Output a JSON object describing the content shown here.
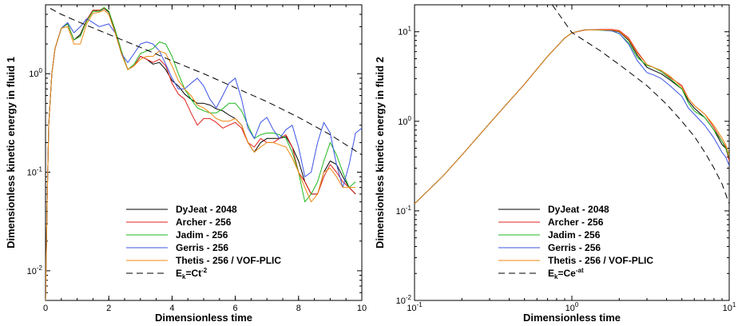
{
  "chart_data": [
    {
      "type": "line",
      "xlabel": "Dimensionless time",
      "ylabel": "Dimensionless kinetic energy in fluid 1",
      "xscale": "linear",
      "yscale": "log",
      "xlim": [
        0,
        10
      ],
      "ylim": [
        0.005,
        5
      ],
      "xticks": [
        0,
        2,
        4,
        6,
        8,
        10
      ],
      "xtick_labels": [
        "0",
        "2",
        "4",
        "6",
        "8",
        "10"
      ],
      "yticks": [
        0.01,
        0.1,
        1
      ],
      "ytick_labels": [
        {
          "base": "10",
          "exp": "-2"
        },
        {
          "base": "10",
          "exp": "-1"
        },
        {
          "base": "10",
          "exp": "0"
        }
      ],
      "legend_position": "bottom-center",
      "series": [
        {
          "name": "DyJeat - 2048",
          "color": "#000000",
          "dash": "solid",
          "x": [
            0,
            0.05,
            0.1,
            0.2,
            0.3,
            0.5,
            0.7,
            0.9,
            1.1,
            1.3,
            1.5,
            1.7,
            1.85,
            2.0,
            2.2,
            2.4,
            2.6,
            2.8,
            3.0,
            3.2,
            3.4,
            3.6,
            3.8,
            4.0,
            4.2,
            4.4,
            4.6,
            4.8,
            5.0,
            5.2,
            5.4,
            5.6,
            5.8,
            6.0,
            6.2,
            6.4,
            6.6,
            6.8,
            7.0,
            7.2,
            7.4,
            7.6,
            7.8,
            8.0,
            8.2,
            8.4,
            8.6,
            8.8,
            9.0,
            9.2,
            9.4,
            9.6,
            9.8
          ],
          "y": [
            0.005,
            0.05,
            0.3,
            1.0,
            1.8,
            2.9,
            3.2,
            2.2,
            2.5,
            3.5,
            4.4,
            4.3,
            4.6,
            4.2,
            2.7,
            1.6,
            1.1,
            1.2,
            1.5,
            1.4,
            1.25,
            1.3,
            1.1,
            0.85,
            0.75,
            0.62,
            0.55,
            0.5,
            0.5,
            0.48,
            0.44,
            0.42,
            0.38,
            0.35,
            0.3,
            0.2,
            0.16,
            0.2,
            0.22,
            0.22,
            0.22,
            0.23,
            0.18,
            0.13,
            0.08,
            0.06,
            0.06,
            0.1,
            0.13,
            0.12,
            0.09,
            0.07,
            0.06
          ]
        },
        {
          "name": "Archer - 256",
          "color": "#e0201c",
          "dash": "solid",
          "x": [
            0,
            0.05,
            0.1,
            0.2,
            0.3,
            0.5,
            0.7,
            0.9,
            1.1,
            1.3,
            1.5,
            1.7,
            1.85,
            2.0,
            2.2,
            2.4,
            2.6,
            2.8,
            3.0,
            3.2,
            3.4,
            3.6,
            3.8,
            4.0,
            4.2,
            4.4,
            4.6,
            4.8,
            5.0,
            5.2,
            5.4,
            5.6,
            5.8,
            6.0,
            6.2,
            6.4,
            6.6,
            6.8,
            7.0,
            7.2,
            7.4,
            7.6,
            7.8,
            8.0,
            8.2,
            8.4,
            8.6,
            8.8,
            9.0,
            9.2,
            9.4,
            9.6,
            9.8
          ],
          "y": [
            0.005,
            0.05,
            0.3,
            1.0,
            1.8,
            2.9,
            3.2,
            2.2,
            2.4,
            3.5,
            4.4,
            4.4,
            4.6,
            4.3,
            2.8,
            1.7,
            1.1,
            1.2,
            1.5,
            1.4,
            1.3,
            1.4,
            1.2,
            0.8,
            0.62,
            0.55,
            0.4,
            0.3,
            0.35,
            0.35,
            0.32,
            0.28,
            0.3,
            0.32,
            0.28,
            0.2,
            0.18,
            0.22,
            0.2,
            0.2,
            0.22,
            0.24,
            0.18,
            0.1,
            0.08,
            0.06,
            0.06,
            0.09,
            0.12,
            0.1,
            0.08,
            0.07,
            0.06
          ]
        },
        {
          "name": "Jadim - 256",
          "color": "#1fb81f",
          "dash": "solid",
          "x": [
            0,
            0.05,
            0.1,
            0.2,
            0.3,
            0.5,
            0.7,
            0.9,
            1.1,
            1.3,
            1.5,
            1.7,
            1.85,
            2.0,
            2.2,
            2.4,
            2.6,
            2.8,
            3.0,
            3.2,
            3.4,
            3.6,
            3.8,
            4.0,
            4.2,
            4.4,
            4.6,
            4.8,
            5.0,
            5.2,
            5.4,
            5.6,
            5.8,
            6.0,
            6.2,
            6.4,
            6.6,
            6.8,
            7.0,
            7.2,
            7.4,
            7.6,
            7.8,
            8.0,
            8.2,
            8.4,
            8.6,
            8.8,
            9.0,
            9.2,
            9.4,
            9.6,
            9.8
          ],
          "y": [
            0.005,
            0.05,
            0.3,
            1.0,
            1.8,
            2.9,
            3.2,
            2.2,
            2.4,
            3.4,
            4.3,
            4.3,
            4.7,
            4.3,
            2.8,
            1.7,
            1.1,
            1.25,
            1.6,
            1.7,
            1.8,
            2.1,
            2.0,
            1.5,
            1.0,
            0.7,
            0.55,
            0.45,
            0.42,
            0.4,
            0.4,
            0.44,
            0.5,
            0.5,
            0.42,
            0.3,
            0.22,
            0.24,
            0.25,
            0.25,
            0.24,
            0.22,
            0.16,
            0.1,
            0.05,
            0.06,
            0.08,
            0.13,
            0.2,
            0.15,
            0.1,
            0.07,
            0.08
          ]
        },
        {
          "name": "Gerris - 256",
          "color": "#3d55e6",
          "dash": "solid",
          "x": [
            0,
            0.05,
            0.1,
            0.2,
            0.3,
            0.5,
            0.7,
            0.9,
            1.1,
            1.3,
            1.5,
            1.7,
            1.85,
            2.0,
            2.2,
            2.4,
            2.6,
            2.8,
            3.0,
            3.2,
            3.4,
            3.6,
            3.8,
            4.0,
            4.2,
            4.4,
            4.6,
            4.8,
            5.0,
            5.2,
            5.4,
            5.6,
            5.8,
            6.0,
            6.2,
            6.4,
            6.6,
            6.8,
            7.0,
            7.2,
            7.4,
            7.6,
            7.8,
            8.0,
            8.2,
            8.4,
            8.6,
            8.8,
            9.0,
            9.2,
            9.4,
            9.6,
            9.8,
            10.0
          ],
          "y": [
            0.005,
            0.05,
            0.3,
            1.0,
            1.8,
            2.9,
            3.3,
            2.6,
            3.0,
            3.6,
            3.3,
            3.0,
            3.1,
            3.2,
            2.6,
            1.6,
            1.3,
            1.6,
            2.0,
            2.1,
            2.0,
            1.7,
            1.25,
            0.9,
            0.7,
            0.7,
            0.8,
            0.9,
            0.75,
            0.55,
            0.45,
            0.6,
            0.8,
            0.9,
            0.55,
            0.28,
            0.22,
            0.32,
            0.36,
            0.27,
            0.22,
            0.27,
            0.3,
            0.18,
            0.09,
            0.1,
            0.2,
            0.32,
            0.25,
            0.12,
            0.07,
            0.12,
            0.25,
            0.28
          ]
        },
        {
          "name": "Thetis - 256 / VOF-PLIC",
          "color": "#f08a12",
          "dash": "solid",
          "x": [
            0,
            0.05,
            0.1,
            0.2,
            0.3,
            0.5,
            0.7,
            0.9,
            1.1,
            1.3,
            1.5,
            1.7,
            1.85,
            2.0,
            2.2,
            2.4,
            2.6,
            2.8,
            3.0,
            3.2,
            3.4,
            3.6,
            3.8,
            4.0,
            4.2,
            4.4,
            4.6,
            4.8,
            5.0,
            5.2,
            5.4,
            5.6,
            5.8,
            6.0,
            6.2,
            6.4,
            6.6,
            6.8,
            7.0,
            7.2,
            7.4,
            7.6,
            7.8,
            8.0,
            8.2,
            8.4,
            8.6,
            8.8,
            9.0,
            9.2,
            9.4,
            9.6,
            9.8
          ],
          "y": [
            0.005,
            0.05,
            0.3,
            1.0,
            1.8,
            2.9,
            3.0,
            2.0,
            2.0,
            3.2,
            4.1,
            4.2,
            4.4,
            4.0,
            2.6,
            1.6,
            1.1,
            1.2,
            1.4,
            1.5,
            1.5,
            1.7,
            1.6,
            1.2,
            0.85,
            0.7,
            0.6,
            0.48,
            0.45,
            0.4,
            0.35,
            0.33,
            0.33,
            0.35,
            0.3,
            0.2,
            0.16,
            0.18,
            0.2,
            0.2,
            0.19,
            0.18,
            0.14,
            0.1,
            0.07,
            0.05,
            0.06,
            0.1,
            0.11,
            0.09,
            0.07,
            0.07,
            0.07
          ]
        },
        {
          "name_base": "E",
          "name_sub": "k",
          "name_mid": "=Ct",
          "name_sup": "-2",
          "color": "#000000",
          "dash": "8,5",
          "x": [
            0.15,
            0.5,
            1,
            2,
            3,
            4,
            5,
            6,
            7,
            8,
            9,
            10
          ],
          "y": [
            4.6,
            4.0,
            3.4,
            2.5,
            1.85,
            1.35,
            1.0,
            0.72,
            0.52,
            0.36,
            0.24,
            0.15
          ]
        }
      ]
    },
    {
      "type": "line",
      "xlabel": "Dimensionless time",
      "ylabel": "Dimensionless kinetic energy in fluid 2",
      "xscale": "log",
      "yscale": "log",
      "xlim": [
        0.1,
        10
      ],
      "ylim": [
        0.01,
        20
      ],
      "xticks": [
        0.1,
        1,
        10
      ],
      "xtick_labels": [
        {
          "base": "10",
          "exp": "-1"
        },
        {
          "base": "10",
          "exp": "0"
        },
        {
          "base": "10",
          "exp": "1"
        }
      ],
      "yticks": [
        0.01,
        0.1,
        1,
        10
      ],
      "ytick_labels": [
        {
          "base": "10",
          "exp": "-2"
        },
        {
          "base": "10",
          "exp": "-1"
        },
        {
          "base": "10",
          "exp": "0"
        },
        {
          "base": "10",
          "exp": "1"
        }
      ],
      "legend_position": "bottom-center",
      "series": [
        {
          "name": "DyJeat - 2048",
          "color": "#000000",
          "dash": "solid",
          "x": [
            0.1,
            0.15,
            0.2,
            0.3,
            0.5,
            0.7,
            0.9,
            1.0,
            1.2,
            1.5,
            1.8,
            2.0,
            2.3,
            2.6,
            3.0,
            3.3,
            3.7,
            4.2,
            5.0,
            5.5,
            6.0,
            7.0,
            8.0,
            9.0,
            9.5,
            10.0
          ],
          "y": [
            0.12,
            0.24,
            0.42,
            0.95,
            2.6,
            5.3,
            8.5,
            9.7,
            10.5,
            10.5,
            10.3,
            10.0,
            8.0,
            5.5,
            4.0,
            3.7,
            3.4,
            2.9,
            2.3,
            1.7,
            1.4,
            1.1,
            0.8,
            0.55,
            0.5,
            0.38
          ]
        },
        {
          "name": "Archer - 256",
          "color": "#e0201c",
          "dash": "solid",
          "x": [
            0.1,
            0.15,
            0.2,
            0.3,
            0.5,
            0.7,
            0.9,
            1.0,
            1.2,
            1.5,
            1.8,
            2.0,
            2.3,
            2.6,
            3.0,
            3.3,
            3.7,
            4.2,
            5.0,
            5.5,
            6.0,
            7.0,
            8.0,
            9.0,
            9.5,
            10.0
          ],
          "y": [
            0.12,
            0.24,
            0.42,
            0.95,
            2.6,
            5.3,
            8.5,
            9.7,
            10.4,
            10.6,
            10.6,
            10.3,
            8.5,
            6.0,
            4.3,
            4.0,
            3.6,
            3.1,
            2.5,
            1.8,
            1.5,
            1.2,
            0.85,
            0.6,
            0.52,
            0.36
          ]
        },
        {
          "name": "Jadim - 256",
          "color": "#1fb81f",
          "dash": "solid",
          "x": [
            0.1,
            0.15,
            0.2,
            0.3,
            0.5,
            0.7,
            0.9,
            1.0,
            1.2,
            1.5,
            1.8,
            2.0,
            2.3,
            2.6,
            3.0,
            3.3,
            3.7,
            4.2,
            5.0,
            5.5,
            6.0,
            7.0,
            8.0,
            9.0,
            9.5,
            10.0
          ],
          "y": [
            0.12,
            0.24,
            0.42,
            0.95,
            2.6,
            5.3,
            8.5,
            9.7,
            10.5,
            10.4,
            10.2,
            9.5,
            7.5,
            5.2,
            4.2,
            4.0,
            3.6,
            3.0,
            2.3,
            1.6,
            1.3,
            1.1,
            0.8,
            0.6,
            0.5,
            0.4
          ]
        },
        {
          "name": "Gerris - 256",
          "color": "#3d55e6",
          "dash": "solid",
          "x": [
            0.1,
            0.15,
            0.2,
            0.3,
            0.5,
            0.7,
            0.9,
            1.0,
            1.2,
            1.5,
            1.8,
            2.0,
            2.3,
            2.6,
            3.0,
            3.3,
            3.7,
            4.2,
            5.0,
            5.5,
            6.0,
            7.0,
            8.0,
            9.0,
            9.5,
            10.0
          ],
          "y": [
            0.12,
            0.24,
            0.42,
            0.95,
            2.6,
            5.3,
            8.5,
            9.7,
            10.5,
            10.5,
            10.2,
            9.6,
            7.2,
            4.8,
            3.5,
            3.3,
            3.0,
            2.5,
            1.9,
            1.4,
            1.2,
            0.9,
            0.65,
            0.45,
            0.4,
            0.32
          ]
        },
        {
          "name": "Thetis - 256 / VOF-PLIC",
          "color": "#f08a12",
          "dash": "solid",
          "x": [
            0.1,
            0.15,
            0.2,
            0.3,
            0.5,
            0.7,
            0.9,
            1.0,
            1.2,
            1.5,
            1.8,
            2.0,
            2.3,
            2.6,
            3.0,
            3.3,
            3.7,
            4.2,
            5.0,
            5.5,
            6.0,
            7.0,
            8.0,
            9.0,
            9.5,
            10.0
          ],
          "y": [
            0.12,
            0.24,
            0.42,
            0.95,
            2.6,
            5.3,
            8.5,
            9.7,
            10.5,
            10.5,
            10.4,
            10.1,
            8.2,
            5.8,
            4.3,
            4.0,
            3.7,
            3.2,
            2.4,
            1.8,
            1.5,
            1.2,
            0.9,
            0.65,
            0.55,
            0.42
          ]
        },
        {
          "name_base": "E",
          "name_sub": "k",
          "name_mid": "=Ce",
          "name_sup": "-at",
          "color": "#000000",
          "dash": "8,5",
          "x": [
            0.75,
            1.0,
            1.5,
            2.0,
            3.0,
            4.0,
            5.0,
            6.0,
            7.0,
            8.0,
            9.0,
            10.0
          ],
          "y": [
            20,
            9.8,
            6.2,
            4.3,
            2.5,
            1.55,
            1.0,
            0.68,
            0.45,
            0.3,
            0.2,
            0.12
          ]
        }
      ]
    }
  ]
}
